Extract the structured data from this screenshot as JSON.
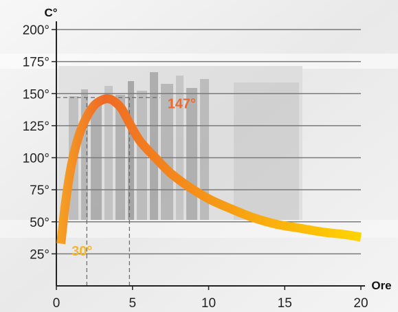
{
  "chart_data": {
    "type": "line",
    "xlabel": "Ore",
    "ylabel": "C°",
    "xlim": [
      0,
      20
    ],
    "ylim": [
      0,
      200
    ],
    "x_ticks": [
      "0",
      "5",
      "10",
      "15",
      "20"
    ],
    "y_ticks": [
      "25°",
      "50°",
      "75°",
      "100°",
      "125°",
      "150°",
      "175°",
      "200°"
    ],
    "grid": true,
    "series": [
      {
        "x": [
          0.3,
          0.6,
          1.0,
          1.5,
          2.0,
          2.5,
          3.0,
          3.4,
          3.8,
          4.3,
          4.8,
          5.5,
          6.5,
          7.5,
          8.5,
          10.0,
          11.5,
          13.0,
          14.5,
          16.0,
          17.5,
          19.0,
          20.0
        ],
        "y": [
          33,
          65,
          95,
          118,
          132,
          141,
          145,
          146,
          144,
          138,
          127,
          113,
          100,
          88,
          79,
          68,
          60,
          53,
          48,
          45,
          42,
          40,
          38
        ]
      }
    ],
    "annotations": [
      {
        "text": "30°",
        "x": 1.0,
        "y": 30,
        "color": "#f5b731"
      },
      {
        "text": "147°",
        "x": 7.3,
        "y": 145,
        "color": "#ec6b2d"
      }
    ],
    "reference_lines": [
      {
        "kind": "vertical",
        "x": 2.0,
        "y_to": 147
      },
      {
        "kind": "vertical",
        "x": 4.8,
        "y_to": 147
      },
      {
        "kind": "horizontal",
        "y": 147,
        "x_from": 0,
        "x_to": 6.8
      }
    ],
    "colors": {
      "curve_start": "#f5a623",
      "curve_peak": "#ef6a26",
      "curve_end": "#ffd400"
    }
  }
}
